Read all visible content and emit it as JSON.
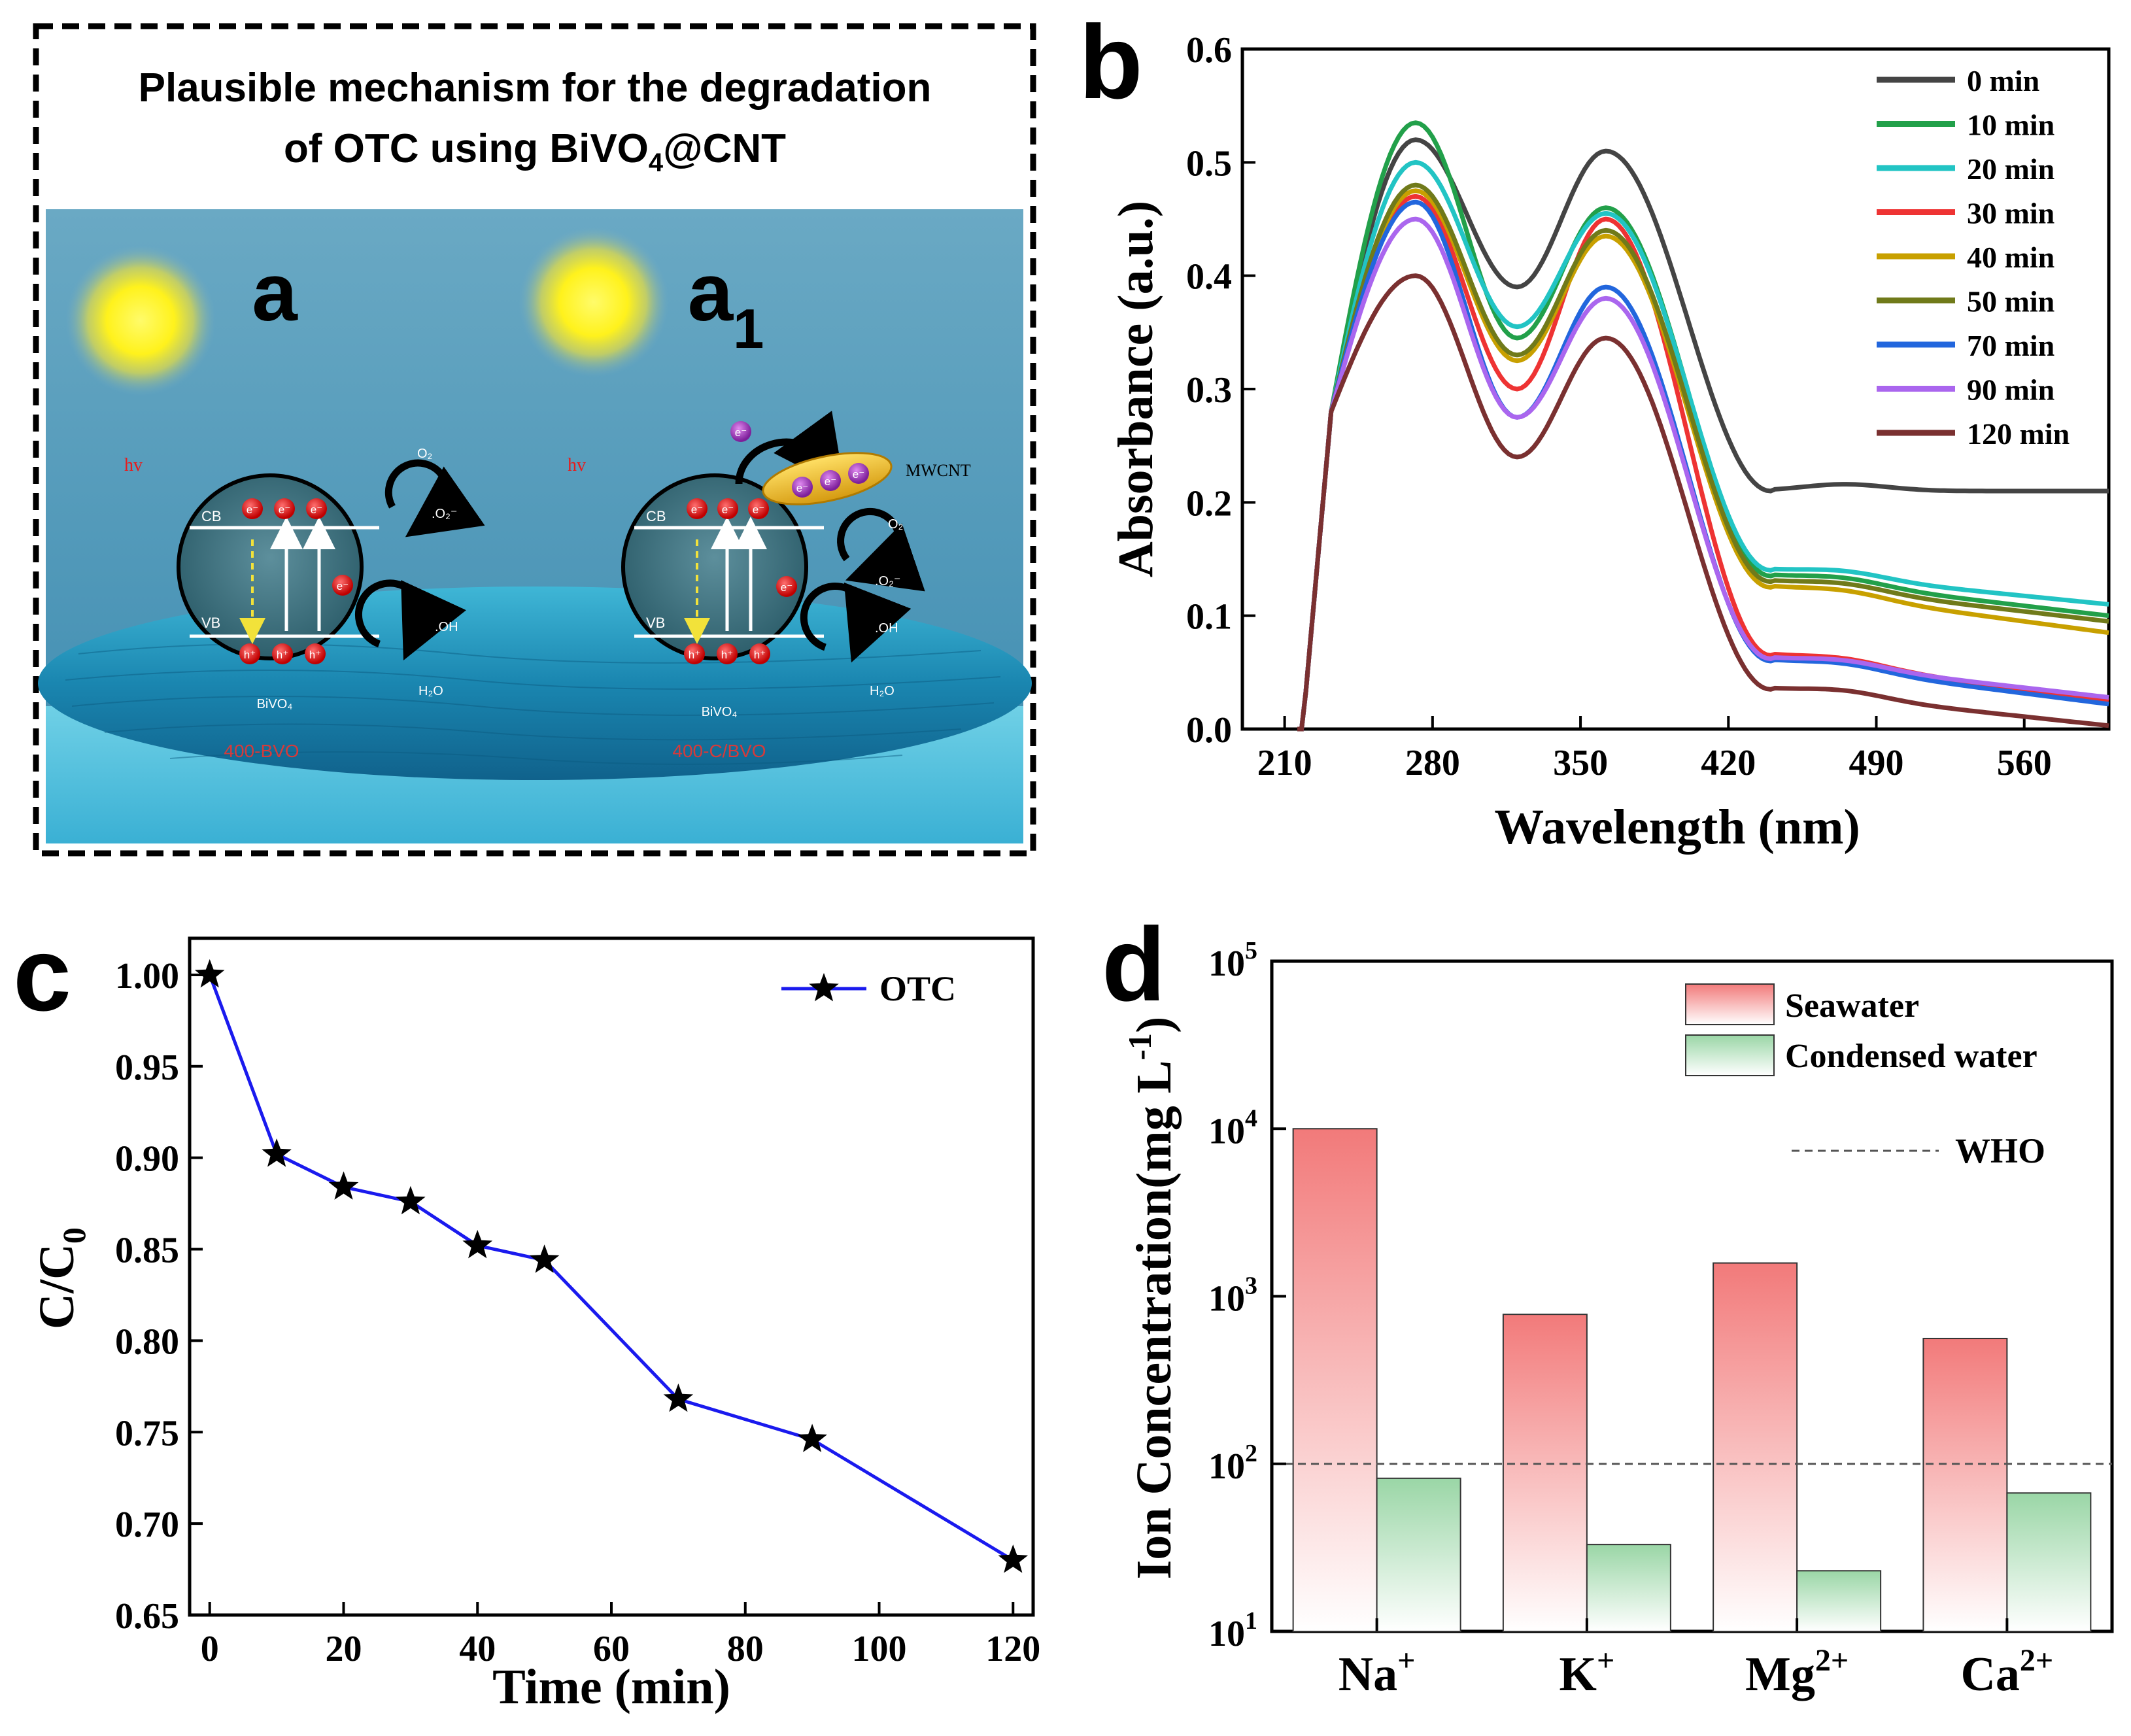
{
  "panel_a": {
    "letter": "a",
    "letter2": "a",
    "letter2_sub": "1",
    "heading_line1": "Plausible mechanism for the degradation",
    "heading_line2_pre": "of OTC using BiVO",
    "heading_line2_sub": "4",
    "heading_line2_post": "@CNT",
    "hv": "hv",
    "cb": "CB",
    "vb": "VB",
    "electron": "e⁻",
    "hole": "h⁺",
    "o2": "O₂",
    "superoxide": ".O₂⁻",
    "oh": ".OH",
    "h2o": "H₂O",
    "bivo4": "BiVO₄",
    "mwcnt": "MWCNT",
    "label_left": "400-BVO",
    "label_right": "400-C/BVO"
  },
  "chart_data": [
    {
      "panel": "b",
      "type": "line",
      "xlabel": "Wavelength (nm)",
      "ylabel": "Absorbance (a.u.)",
      "xlim": [
        190,
        600
      ],
      "ylim": [
        0.0,
        0.6
      ],
      "xticks": [
        210,
        280,
        350,
        420,
        490,
        560
      ],
      "yticks": [
        0.0,
        0.1,
        0.2,
        0.3,
        0.4,
        0.5,
        0.6
      ],
      "xtick_labels": [
        "210",
        "280",
        "350",
        "420",
        "490",
        "560"
      ],
      "ytick_labels": [
        "0.0",
        "0.1",
        "0.2",
        "0.3",
        "0.4",
        "0.5",
        "0.6"
      ],
      "legend_position": "top-right",
      "series": [
        {
          "name": "0 min",
          "color": "#444444",
          "peak1": 0.52,
          "valley": 0.39,
          "peak2": 0.51,
          "plateau": 0.21,
          "end": 0.21
        },
        {
          "name": "10 min",
          "color": "#22a04a",
          "peak1": 0.535,
          "valley": 0.345,
          "peak2": 0.46,
          "plateau": 0.135,
          "end": 0.1
        },
        {
          "name": "20 min",
          "color": "#22c4c4",
          "peak1": 0.5,
          "valley": 0.355,
          "peak2": 0.455,
          "plateau": 0.14,
          "end": 0.11
        },
        {
          "name": "30 min",
          "color": "#ee3333",
          "peak1": 0.47,
          "valley": 0.3,
          "peak2": 0.45,
          "plateau": 0.065,
          "end": 0.025
        },
        {
          "name": "40 min",
          "color": "#c8a000",
          "peak1": 0.475,
          "valley": 0.325,
          "peak2": 0.435,
          "plateau": 0.125,
          "end": 0.085
        },
        {
          "name": "50 min",
          "color": "#707a1a",
          "peak1": 0.48,
          "valley": 0.33,
          "peak2": 0.44,
          "plateau": 0.13,
          "end": 0.095
        },
        {
          "name": "70 min",
          "color": "#2266dd",
          "peak1": 0.465,
          "valley": 0.275,
          "peak2": 0.39,
          "plateau": 0.06,
          "end": 0.022
        },
        {
          "name": "90 min",
          "color": "#aa66ee",
          "peak1": 0.45,
          "valley": 0.275,
          "peak2": 0.38,
          "plateau": 0.062,
          "end": 0.028
        },
        {
          "name": "120 min",
          "color": "#7a3030",
          "peak1": 0.4,
          "valley": 0.24,
          "peak2": 0.345,
          "plateau": 0.035,
          "end": 0.003
        }
      ]
    },
    {
      "panel": "c",
      "type": "line",
      "xlabel": "Time (min)",
      "ylabel": "C/C",
      "ylabel_sub": "0",
      "xlim": [
        -3,
        123
      ],
      "ylim": [
        0.65,
        1.02
      ],
      "xticks": [
        0,
        20,
        40,
        60,
        80,
        100,
        120
      ],
      "yticks": [
        0.65,
        0.7,
        0.75,
        0.8,
        0.85,
        0.9,
        0.95,
        1.0
      ],
      "xtick_labels": [
        "0",
        "20",
        "40",
        "60",
        "80",
        "100",
        "120"
      ],
      "ytick_labels": [
        "0.65",
        "0.70",
        "0.75",
        "0.80",
        "0.85",
        "0.90",
        "0.95",
        "1.00"
      ],
      "legend_position": "top-right",
      "series": [
        {
          "name": "OTC",
          "color": "#1a1aee",
          "x": [
            0,
            10,
            20,
            30,
            40,
            50,
            70,
            90,
            120
          ],
          "y": [
            1.0,
            0.902,
            0.884,
            0.876,
            0.852,
            0.844,
            0.768,
            0.746,
            0.68
          ]
        }
      ]
    },
    {
      "panel": "d",
      "type": "bar",
      "ylabel": "Ion Concentration(mg L",
      "ylabel_sup": "-1",
      "ylabel_end": ")",
      "yscale": "log",
      "ylim": [
        10,
        100000
      ],
      "ytick_base": "10",
      "ytick_exponents": [
        "1",
        "2",
        "3",
        "4",
        "5"
      ],
      "categories": [
        {
          "base": "Na",
          "sup": "+"
        },
        {
          "base": "K",
          "sup": "+"
        },
        {
          "base": "Mg",
          "sup": "2+"
        },
        {
          "base": "Ca",
          "sup": "2+"
        }
      ],
      "legend_position": "top-right",
      "series": [
        {
          "name": "Seawater",
          "color": "#f08080",
          "values": [
            10000,
            780,
            1580,
            560
          ]
        },
        {
          "name": "Condensed water",
          "color": "#a8dcb0",
          "values": [
            82,
            33,
            23,
            67
          ]
        }
      ],
      "reference_line": {
        "name": "WHO",
        "value": 100
      }
    }
  ],
  "panel_letters": {
    "b": "b",
    "c": "c",
    "d": "d"
  }
}
